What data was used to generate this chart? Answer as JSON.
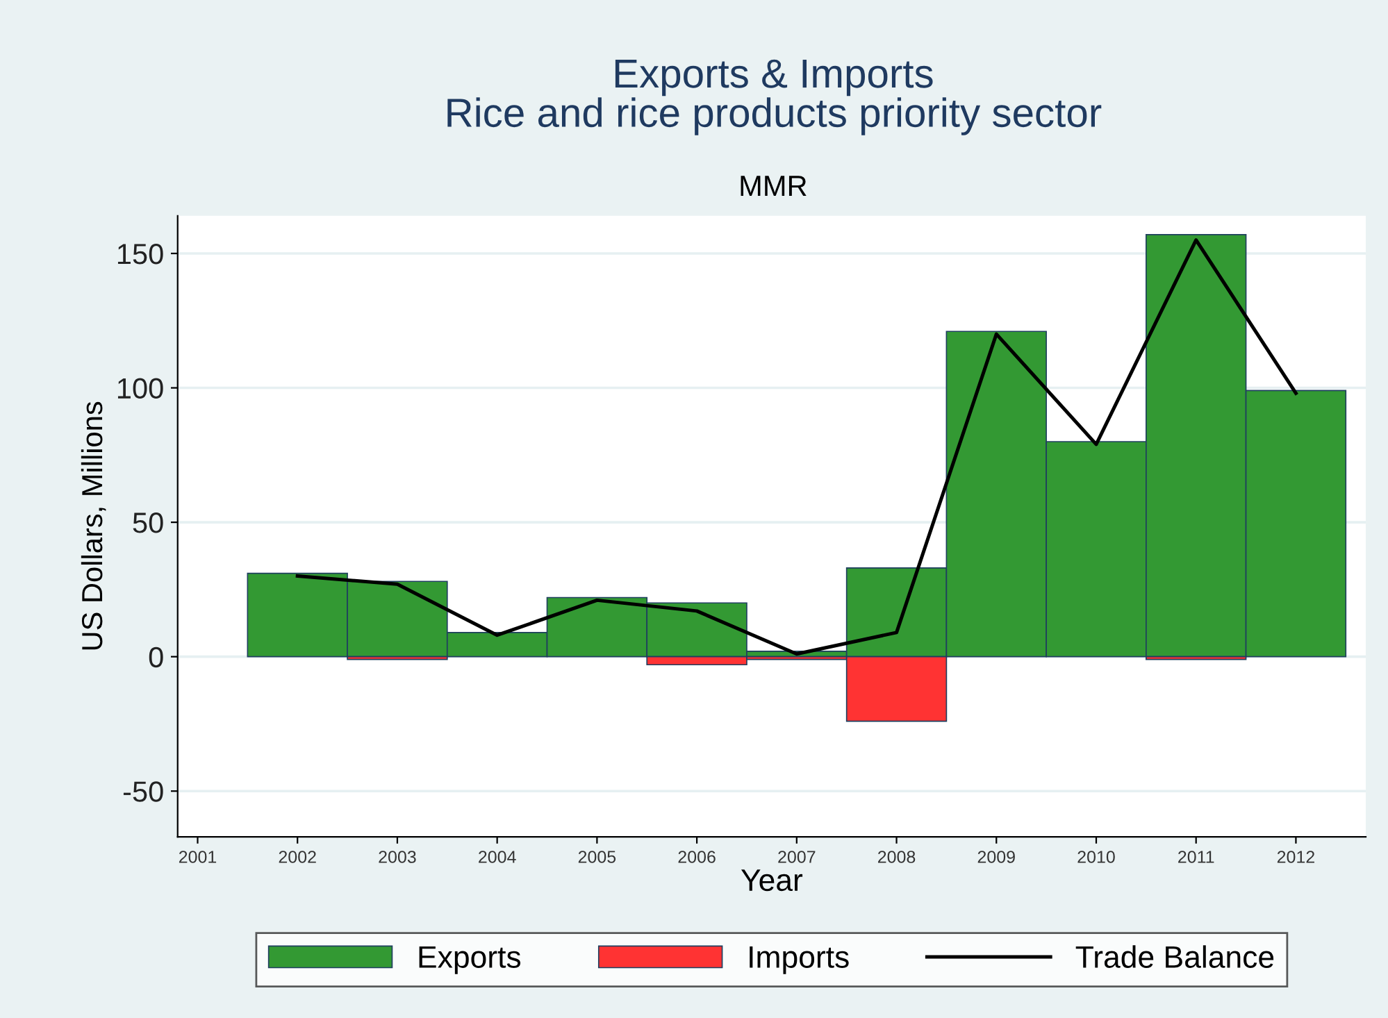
{
  "chart_data": {
    "type": "bar",
    "title": "Exports & Imports\nRice and rice products priority sector",
    "subtitle": "MMR",
    "xlabel": "Year",
    "ylabel": "US Dollars, Millions",
    "x": [
      2002,
      2003,
      2004,
      2005,
      2006,
      2007,
      2008,
      2009,
      2010,
      2011,
      2012
    ],
    "series": [
      {
        "name": "Exports",
        "color": "#339933",
        "values": [
          31,
          28,
          9,
          22,
          20,
          2,
          33,
          121,
          80,
          157,
          99
        ]
      },
      {
        "name": "Imports",
        "color": "#ff3333",
        "values": [
          0,
          -1,
          0,
          0,
          -3,
          -1,
          -24,
          0,
          0,
          -1,
          0
        ]
      },
      {
        "name": "Trade Balance",
        "type": "line",
        "color": "#000000",
        "values": [
          30,
          27,
          8,
          21,
          17,
          1,
          9,
          120,
          79,
          155,
          98
        ]
      }
    ],
    "xlim": [
      2000.8,
      2012.7
    ],
    "xticks": [
      2001,
      2002,
      2003,
      2004,
      2005,
      2006,
      2007,
      2008,
      2009,
      2010,
      2011,
      2012
    ],
    "ylim": [
      -67,
      164
    ],
    "yticks": [
      -50,
      0,
      50,
      100,
      150
    ],
    "grid": "y",
    "legend": "bottom"
  }
}
